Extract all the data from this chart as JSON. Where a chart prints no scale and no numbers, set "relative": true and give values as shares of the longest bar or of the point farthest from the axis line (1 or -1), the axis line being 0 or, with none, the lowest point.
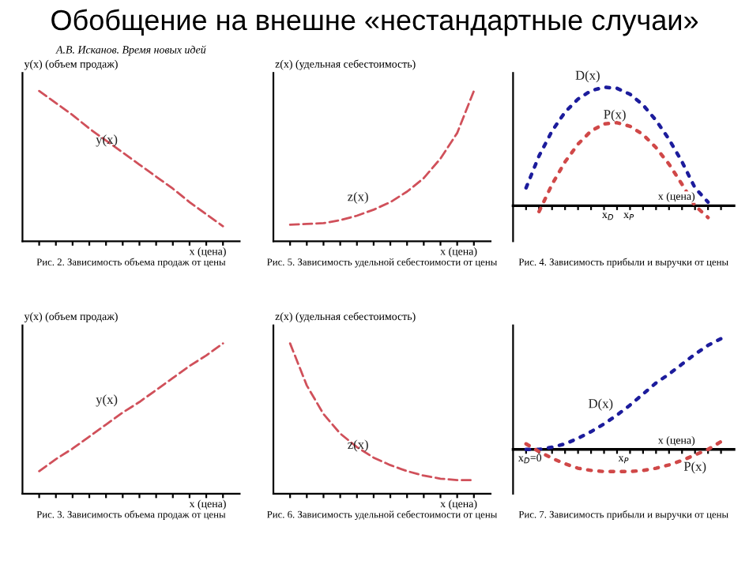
{
  "chart_data": [
    {
      "type": "line",
      "title": "Обобщение на внешне «нестандартные случаи»",
      "relative": true,
      "grid": false,
      "legend": false,
      "line_style": "dashed",
      "marker": "none",
      "ylabel": "y(x) (объем продаж)",
      "xlabel": "x (цена)",
      "annotations": [
        "А.В. Исканов. Время новых идей",
        "Рис. 2. Зависимость объема продаж от цены"
      ],
      "categories": [
        null,
        null,
        null,
        null,
        null,
        null,
        null,
        null,
        null,
        null,
        null,
        null
      ],
      "series": [
        {
          "name": "y(x)",
          "color": "#d0505a",
          "values": [
            1.0,
            0.92,
            0.84,
            0.75,
            0.67,
            0.59,
            0.51,
            0.43,
            0.35,
            0.26,
            0.18,
            0.1
          ]
        }
      ]
    },
    {
      "type": "line",
      "relative": true,
      "grid": false,
      "legend": false,
      "line_style": "dashed",
      "marker": "none",
      "ylabel": "z(x) (удельная себестоимость)",
      "xlabel": "x (цена)",
      "annotations": [
        "Рис. 5. Зависимость удельной себестоимости от цены"
      ],
      "categories": [
        null,
        null,
        null,
        null,
        null,
        null,
        null,
        null,
        null,
        null,
        null,
        null
      ],
      "series": [
        {
          "name": "z(x)",
          "color": "#d0505a",
          "values": [
            0.11,
            0.115,
            0.12,
            0.14,
            0.17,
            0.21,
            0.26,
            0.33,
            0.42,
            0.55,
            0.72,
            1.0
          ]
        }
      ]
    },
    {
      "type": "line",
      "relative": true,
      "grid": false,
      "legend": false,
      "line_style": "dotted",
      "marker": "none",
      "xlabel": "x (цена)",
      "annotations": [
        "Рис. 4. Зависимость прибыли и выручки от цены",
        "x$_{D}$",
        "x$_{P}$"
      ],
      "categories": [
        null,
        null,
        null,
        null,
        null,
        null,
        null,
        null,
        null,
        null,
        null,
        null,
        null,
        null,
        null,
        null
      ],
      "series": [
        {
          "name": "D(x)",
          "color": "#1c1c9c",
          "values": [
            0.15,
            0.42,
            0.63,
            0.79,
            0.9,
            0.97,
            1.0,
            0.99,
            0.94,
            0.85,
            0.72,
            0.56,
            0.37,
            0.15,
            0.03,
            null
          ]
        },
        {
          "name": "P(x)",
          "color": "#d04848",
          "values": [
            null,
            -0.05,
            0.18,
            0.37,
            0.52,
            0.63,
            0.69,
            0.7,
            0.67,
            0.6,
            0.49,
            0.35,
            0.18,
            0.0,
            -0.1,
            null
          ]
        }
      ]
    },
    {
      "type": "line",
      "relative": true,
      "grid": false,
      "legend": false,
      "line_style": "dashed",
      "marker": "none",
      "ylabel": "y(x) (объем продаж)",
      "xlabel": "x (цена)",
      "annotations": [
        "Рис. 3. Зависимость объема продаж от цены"
      ],
      "categories": [
        null,
        null,
        null,
        null,
        null,
        null,
        null,
        null,
        null,
        null,
        null,
        null
      ],
      "series": [
        {
          "name": "y(x)",
          "color": "#d0505a",
          "values": [
            0.15,
            0.23,
            0.3,
            0.38,
            0.46,
            0.54,
            0.61,
            0.69,
            0.77,
            0.85,
            0.92,
            1.0
          ]
        }
      ]
    },
    {
      "type": "line",
      "relative": true,
      "grid": false,
      "legend": false,
      "line_style": "dashed",
      "marker": "none",
      "ylabel": "z(x) (удельная себестоимость)",
      "xlabel": "x (цена)",
      "annotations": [
        "Рис. 6. Зависимость удельной себестоимости от цены"
      ],
      "categories": [
        null,
        null,
        null,
        null,
        null,
        null,
        null,
        null,
        null,
        null,
        null,
        null
      ],
      "series": [
        {
          "name": "z(x)",
          "color": "#d0505a",
          "values": [
            1.0,
            0.72,
            0.53,
            0.4,
            0.31,
            0.24,
            0.19,
            0.15,
            0.12,
            0.1,
            0.09,
            0.09
          ]
        }
      ]
    },
    {
      "type": "line",
      "relative": true,
      "grid": false,
      "legend": false,
      "line_style": "dotted",
      "marker": "none",
      "xlabel": "x (цена)",
      "annotations": [
        "Рис. 7. Зависимость прибыли и выручки от цены",
        "x$_{D}$=0",
        "x$_{P}$"
      ],
      "categories": [
        null,
        null,
        null,
        null,
        null,
        null,
        null,
        null,
        null,
        null,
        null,
        null,
        null,
        null,
        null,
        null
      ],
      "series": [
        {
          "name": "D(x)",
          "color": "#1c1c9c",
          "values": [
            0.0,
            0.0,
            0.02,
            0.05,
            0.1,
            0.16,
            0.23,
            0.31,
            0.4,
            0.5,
            0.6,
            0.68,
            0.77,
            0.86,
            0.94,
            1.0
          ]
        },
        {
          "name": "P(x)",
          "color": "#d04848",
          "values": [
            0.05,
            -0.02,
            -0.08,
            -0.13,
            -0.17,
            -0.19,
            -0.2,
            -0.2,
            -0.2,
            -0.19,
            -0.17,
            -0.14,
            -0.1,
            -0.05,
            0.0,
            0.07
          ]
        }
      ]
    }
  ]
}
